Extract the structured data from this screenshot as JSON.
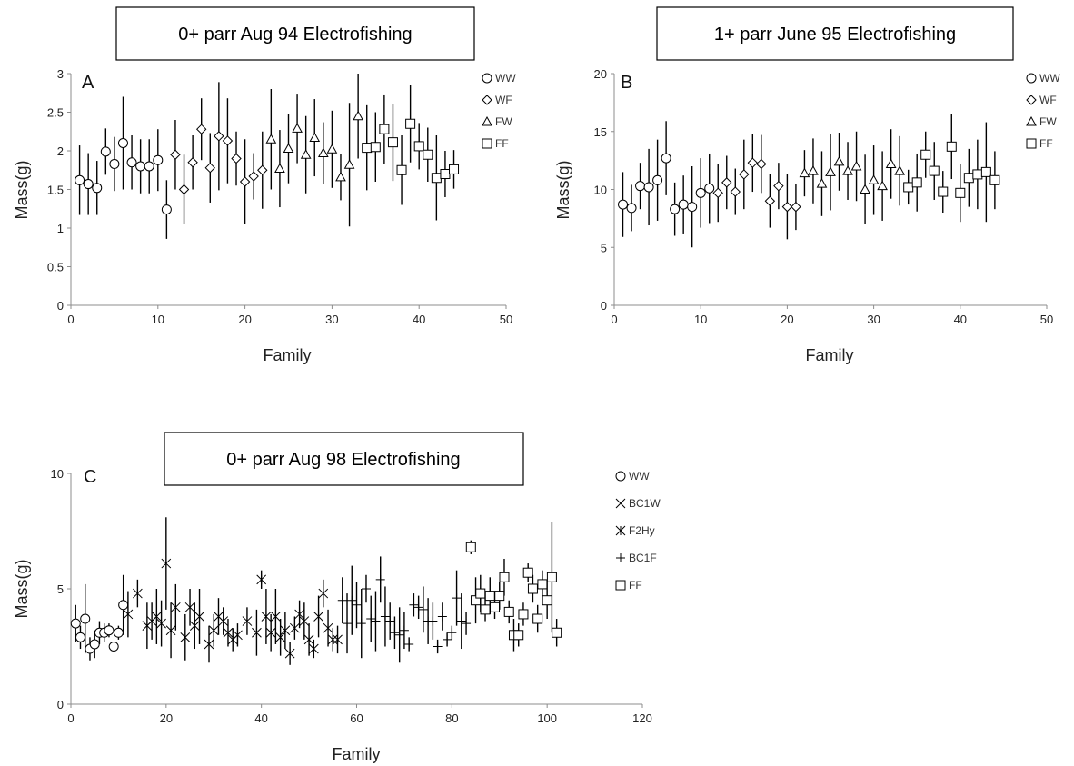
{
  "chart_data": [
    {
      "panel": "A",
      "type": "scatter",
      "title": "0+ parr Aug 94 Electrofishing",
      "xlabel": "Family",
      "ylabel": "Mass(g)",
      "xlim": [
        0,
        50
      ],
      "ylim": [
        0,
        3
      ],
      "x_ticks": [
        "0",
        "10",
        "20",
        "30",
        "40",
        "50"
      ],
      "y_ticks": [
        "0",
        "0.5",
        "1",
        "1.5",
        "2",
        "2.5",
        "3"
      ],
      "legend_position": "right",
      "series": [
        {
          "name": "WW",
          "marker": "circle",
          "points": [
            [
              1,
              1.62,
              0.45
            ],
            [
              2,
              1.57,
              0.4
            ],
            [
              3,
              1.52,
              0.35
            ],
            [
              4,
              1.99,
              0.3
            ],
            [
              5,
              1.83,
              0.35
            ],
            [
              6,
              2.1,
              0.6
            ],
            [
              7,
              1.85,
              0.35
            ],
            [
              8,
              1.8,
              0.35
            ],
            [
              9,
              1.8,
              0.35
            ],
            [
              10,
              1.88,
              0.4
            ],
            [
              11,
              1.24,
              0.38
            ]
          ]
        },
        {
          "name": "WF",
          "marker": "diamond",
          "points": [
            [
              12,
              1.95,
              0.45
            ],
            [
              13,
              1.5,
              0.45
            ],
            [
              14,
              1.85,
              0.35
            ],
            [
              15,
              2.28,
              0.4
            ],
            [
              16,
              1.78,
              0.45
            ],
            [
              17,
              2.19,
              0.7
            ],
            [
              18,
              2.13,
              0.55
            ],
            [
              19,
              1.9,
              0.35
            ],
            [
              20,
              1.6,
              0.55
            ],
            [
              21,
              1.67,
              0.3
            ],
            [
              22,
              1.75,
              0.5
            ]
          ]
        },
        {
          "name": "FW",
          "marker": "triangle",
          "points": [
            [
              23,
              2.15,
              0.65
            ],
            [
              24,
              1.77,
              0.5
            ],
            [
              25,
              2.03,
              0.45
            ],
            [
              26,
              2.29,
              0.45
            ],
            [
              27,
              1.95,
              0.5
            ],
            [
              28,
              2.17,
              0.5
            ],
            [
              29,
              1.97,
              0.4
            ],
            [
              30,
              2.02,
              0.5
            ],
            [
              31,
              1.66,
              0.3
            ],
            [
              32,
              1.82,
              0.8
            ],
            [
              33,
              2.45,
              0.55
            ]
          ]
        },
        {
          "name": "FF",
          "marker": "square",
          "points": [
            [
              34,
              2.04,
              0.55
            ],
            [
              35,
              2.05,
              0.45
            ],
            [
              36,
              2.28,
              0.45
            ],
            [
              37,
              2.11,
              0.5
            ],
            [
              38,
              1.75,
              0.45
            ],
            [
              39,
              2.35,
              0.5
            ],
            [
              40,
              2.06,
              0.3
            ],
            [
              41,
              1.95,
              0.35
            ],
            [
              42,
              1.65,
              0.55
            ],
            [
              43,
              1.7,
              0.3
            ],
            [
              44,
              1.76,
              0.25
            ]
          ]
        }
      ]
    },
    {
      "panel": "B",
      "type": "scatter",
      "title": "1+ parr June 95 Electrofishing",
      "xlabel": "Family",
      "ylabel": "Mass(g)",
      "xlim": [
        0,
        50
      ],
      "ylim": [
        0,
        20
      ],
      "x_ticks": [
        "0",
        "10",
        "20",
        "30",
        "40",
        "50"
      ],
      "y_ticks": [
        "0",
        "5",
        "10",
        "15",
        "20"
      ],
      "legend_position": "right",
      "series": [
        {
          "name": "WW",
          "marker": "circle",
          "points": [
            [
              1,
              8.7,
              2.8
            ],
            [
              2,
              8.4,
              2
            ],
            [
              3,
              10.3,
              2
            ],
            [
              4,
              10.2,
              3.3
            ],
            [
              5,
              10.8,
              3.5
            ],
            [
              6,
              12.7,
              3.2
            ],
            [
              7,
              8.3,
              2.3
            ],
            [
              8,
              8.7,
              2.5
            ],
            [
              9,
              8.5,
              3.5
            ],
            [
              10,
              9.7,
              3
            ],
            [
              11,
              10.1,
              3
            ]
          ]
        },
        {
          "name": "WF",
          "marker": "diamond",
          "points": [
            [
              12,
              9.7,
              2.5
            ],
            [
              13,
              10.6,
              2.3
            ],
            [
              14,
              9.8,
              2
            ],
            [
              15,
              11.3,
              3
            ],
            [
              16,
              12.3,
              2.5
            ],
            [
              17,
              12.2,
              2.5
            ],
            [
              18,
              9,
              2.3
            ],
            [
              19,
              10.3,
              2
            ],
            [
              20,
              8.5,
              2.8
            ],
            [
              21,
              8.5,
              2
            ]
          ]
        },
        {
          "name": "FW",
          "marker": "triangle",
          "points": [
            [
              22,
              11.4,
              2
            ],
            [
              23,
              11.6,
              2.8
            ],
            [
              24,
              10.5,
              2.8
            ],
            [
              25,
              11.5,
              3.3
            ],
            [
              26,
              12.4,
              2.5
            ],
            [
              27,
              11.6,
              2.5
            ],
            [
              28,
              12,
              3
            ],
            [
              29,
              10,
              3
            ],
            [
              30,
              10.8,
              3
            ],
            [
              31,
              10.3,
              3
            ],
            [
              32,
              12.2,
              3
            ],
            [
              33,
              11.6,
              3
            ]
          ]
        },
        {
          "name": "FF",
          "marker": "square",
          "points": [
            [
              34,
              10.2,
              1.5
            ],
            [
              35,
              10.6,
              2.5
            ],
            [
              36,
              13,
              2
            ],
            [
              37,
              11.6,
              2.5
            ],
            [
              38,
              9.8,
              1.8
            ],
            [
              39,
              13.7,
              2.8
            ],
            [
              40,
              9.7,
              2.5
            ],
            [
              41,
              11,
              2.5
            ],
            [
              42,
              11.3,
              3
            ],
            [
              43,
              11.5,
              4.3
            ],
            [
              44,
              10.8,
              2.5
            ]
          ]
        }
      ]
    },
    {
      "panel": "C",
      "type": "scatter",
      "title": "0+ parr Aug 98 Electrofishing",
      "xlabel": "Family",
      "ylabel": "Mass(g)",
      "xlim": [
        0,
        120
      ],
      "ylim": [
        0,
        10
      ],
      "x_ticks": [
        "0",
        "20",
        "40",
        "60",
        "80",
        "100",
        "120"
      ],
      "y_ticks": [
        "0",
        "5",
        "10"
      ],
      "legend_position": "right",
      "series": [
        {
          "name": "WW",
          "marker": "circle",
          "points": [
            [
              1,
              3.5,
              0.8
            ],
            [
              2,
              2.9,
              0.5
            ],
            [
              3,
              3.7,
              1.5
            ],
            [
              4,
              2.4,
              0.5
            ],
            [
              5,
              2.6,
              0.6
            ],
            [
              6,
              3.1,
              0.5
            ],
            [
              7,
              3.1,
              0.4
            ],
            [
              8,
              3.2,
              0.3
            ],
            [
              9,
              2.5,
              0.2
            ],
            [
              10,
              3.1,
              0.3
            ],
            [
              11,
              4.3,
              1.3
            ]
          ]
        },
        {
          "name": "BC1W",
          "marker": "x",
          "points": [
            [
              12,
              3.9,
              1
            ],
            [
              14,
              4.8,
              0.6
            ],
            [
              16,
              3.4,
              1
            ],
            [
              17,
              3.6,
              0.8
            ],
            [
              18,
              3.8,
              1.2
            ],
            [
              19,
              3.5,
              1
            ],
            [
              20,
              6.1,
              2
            ],
            [
              21,
              3.2,
              1.2
            ],
            [
              22,
              4.2,
              1
            ],
            [
              24,
              2.9,
              1
            ],
            [
              25,
              4.2,
              0.8
            ],
            [
              26,
              3.4,
              1
            ],
            [
              27,
              3.8,
              1.2
            ],
            [
              29,
              2.6,
              0.8
            ],
            [
              30,
              3.2,
              0.7
            ],
            [
              31,
              3.8,
              0.8
            ],
            [
              32,
              3.6,
              0.6
            ],
            [
              33,
              3.1,
              0.6
            ],
            [
              34,
              2.8,
              0.5
            ],
            [
              35,
              3.0,
              0.5
            ],
            [
              37,
              3.6,
              0.6
            ]
          ]
        },
        {
          "name": "F2Hy",
          "marker": "asterisk",
          "points": [
            [
              39,
              3.1,
              1
            ],
            [
              40,
              5.4,
              0.4
            ],
            [
              41,
              3.8,
              1.2
            ],
            [
              42,
              3.1,
              0.8
            ],
            [
              43,
              3.8,
              1.2
            ],
            [
              44,
              2.9,
              0.8
            ],
            [
              45,
              3.2,
              0.8
            ],
            [
              46,
              2.2,
              0.5
            ],
            [
              47,
              3.3,
              0.5
            ],
            [
              48,
              3.9,
              0.6
            ],
            [
              49,
              3.6,
              0.8
            ],
            [
              50,
              2.8,
              0.7
            ],
            [
              51,
              2.4,
              0.4
            ],
            [
              52,
              3.8,
              0.9
            ],
            [
              53,
              4.8,
              0.6
            ],
            [
              54,
              3.3,
              0.8
            ],
            [
              55,
              2.8,
              0.5
            ],
            [
              56,
              2.8,
              0.6
            ]
          ]
        },
        {
          "name": "BC1F",
          "marker": "plus",
          "points": [
            [
              57,
              4.5,
              1
            ],
            [
              58,
              3.5,
              1.3
            ],
            [
              59,
              4.5,
              1.5
            ],
            [
              60,
              4.3,
              1
            ],
            [
              61,
              3.5,
              1.5
            ],
            [
              62,
              5.0,
              0.6
            ],
            [
              63,
              3.7,
              1
            ],
            [
              64,
              3.6,
              1.3
            ],
            [
              65,
              5.4,
              1
            ],
            [
              66,
              3.8,
              1.3
            ],
            [
              67,
              3.6,
              0.8
            ],
            [
              68,
              3.1,
              0.7
            ],
            [
              69,
              3.0,
              1.2
            ],
            [
              70,
              3.2,
              0.8
            ],
            [
              71,
              2.6,
              0.3
            ],
            [
              72,
              4.3,
              0.5
            ],
            [
              73,
              4.2,
              0.5
            ],
            [
              74,
              4.1,
              1
            ],
            [
              75,
              3.6,
              1
            ],
            [
              76,
              3.6,
              0.8
            ],
            [
              77,
              2.5,
              0.3
            ],
            [
              78,
              3.8,
              0.6
            ],
            [
              79,
              2.8,
              0.3
            ],
            [
              80,
              3.1,
              0.3
            ],
            [
              81,
              4.6,
              1.2
            ],
            [
              82,
              3.6,
              1.2
            ],
            [
              83,
              3.5,
              0.5
            ]
          ]
        },
        {
          "name": "FF",
          "marker": "square",
          "points": [
            [
              84,
              6.8,
              0.3
            ],
            [
              85,
              4.5,
              1
            ],
            [
              86,
              4.8,
              0.8
            ],
            [
              87,
              4.1,
              0.5
            ],
            [
              88,
              4.7,
              0.8
            ],
            [
              89,
              4.2,
              0.5
            ],
            [
              90,
              4.7,
              0.6
            ],
            [
              91,
              5.5,
              0.8
            ],
            [
              92,
              4.0,
              0.5
            ],
            [
              93,
              3.0,
              0.7
            ],
            [
              94,
              3.0,
              0.5
            ],
            [
              95,
              3.9,
              0.5
            ],
            [
              96,
              5.7,
              0.4
            ],
            [
              97,
              5.0,
              0.6
            ],
            [
              98,
              3.7,
              0.6
            ],
            [
              99,
              5.2,
              0.6
            ],
            [
              100,
              4.5,
              0.8
            ],
            [
              101,
              5.5,
              2.4
            ],
            [
              102,
              3.1,
              0.6
            ]
          ]
        }
      ]
    }
  ]
}
